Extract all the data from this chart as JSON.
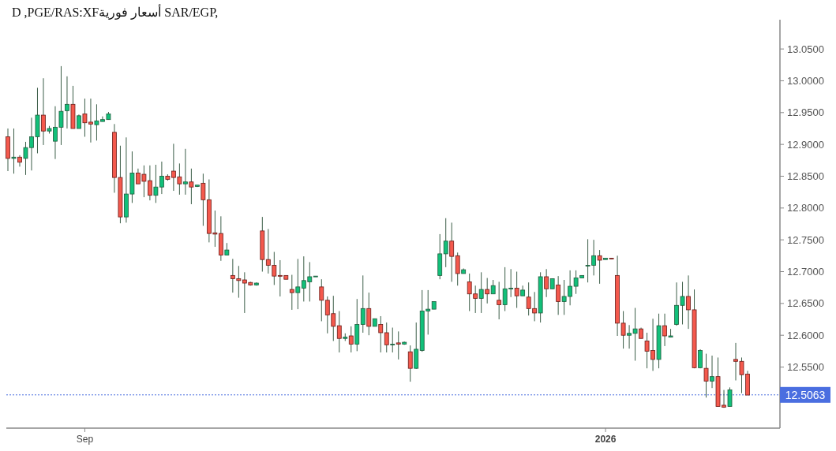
{
  "chart_data": {
    "type": "candlestick",
    "title": "D ,PGE/RAS:XFأسعار فورية SAR/EGP,",
    "categories": [
      null,
      null,
      null,
      null,
      null,
      null,
      null,
      null,
      null,
      null,
      null,
      null,
      null,
      "Sep",
      null,
      null,
      null,
      null,
      null,
      null,
      null,
      null,
      null,
      null,
      null,
      null,
      null,
      null,
      null,
      null,
      null,
      null,
      null,
      null,
      null,
      null,
      null,
      null,
      null,
      null,
      null,
      null,
      null,
      null,
      null,
      null,
      null,
      null,
      null,
      null,
      null,
      null,
      null,
      null,
      null,
      null,
      null,
      null,
      null,
      null,
      null,
      null,
      null,
      null,
      null,
      null,
      null,
      null,
      null,
      null,
      null,
      null,
      null,
      null,
      null,
      null,
      null,
      null,
      null,
      null,
      null,
      null,
      null,
      null,
      null,
      null,
      null,
      null,
      null,
      null,
      null,
      null,
      null,
      null,
      null,
      null,
      null,
      null,
      null,
      null,
      null,
      "2026",
      null,
      null,
      null,
      null,
      null,
      null,
      null,
      null,
      null,
      null,
      null,
      null,
      null,
      null,
      null,
      null,
      null,
      null,
      null,
      null,
      null,
      null,
      null,
      null
    ],
    "ohlc": [
      [
        12.912,
        12.925,
        12.858,
        12.878
      ],
      [
        12.878,
        12.925,
        12.854,
        12.88
      ],
      [
        12.88,
        12.883,
        12.865,
        12.872
      ],
      [
        12.878,
        12.904,
        12.852,
        12.895
      ],
      [
        12.895,
        12.942,
        12.859,
        12.912
      ],
      [
        12.912,
        12.989,
        12.886,
        12.946
      ],
      [
        12.946,
        13.004,
        12.899,
        12.921
      ],
      [
        12.921,
        12.929,
        12.917,
        12.925
      ],
      [
        12.905,
        12.96,
        12.877,
        12.927
      ],
      [
        12.927,
        13.023,
        12.899,
        12.952
      ],
      [
        12.953,
        13.007,
        12.925,
        12.963
      ],
      [
        12.963,
        12.992,
        12.925,
        12.925
      ],
      [
        12.925,
        12.947,
        12.925,
        12.945
      ],
      [
        12.948,
        12.972,
        12.912,
        12.934
      ],
      [
        12.935,
        12.972,
        12.903,
        12.932
      ],
      [
        12.931,
        12.963,
        12.906,
        12.937
      ],
      [
        12.936,
        12.944,
        12.936,
        12.939
      ],
      [
        12.939,
        12.951,
        12.939,
        12.948
      ],
      [
        12.919,
        12.932,
        12.824,
        12.848
      ],
      [
        12.848,
        12.898,
        12.776,
        12.786
      ],
      [
        12.786,
        12.911,
        12.777,
        12.822
      ],
      [
        12.822,
        12.889,
        12.808,
        12.855
      ],
      [
        12.855,
        12.862,
        12.838,
        12.838
      ],
      [
        12.853,
        12.867,
        12.817,
        12.842
      ],
      [
        12.843,
        12.867,
        12.812,
        12.82
      ],
      [
        12.82,
        12.868,
        12.808,
        12.833
      ],
      [
        12.833,
        12.873,
        12.822,
        12.85
      ],
      [
        12.85,
        12.853,
        12.843,
        12.845
      ],
      [
        12.858,
        12.901,
        12.827,
        12.848
      ],
      [
        12.849,
        12.87,
        12.821,
        12.838
      ],
      [
        12.838,
        12.893,
        12.821,
        12.841
      ],
      [
        12.841,
        12.862,
        12.806,
        12.833
      ],
      [
        12.834,
        12.836,
        12.833,
        12.836
      ],
      [
        12.839,
        12.854,
        12.772,
        12.813
      ],
      [
        12.813,
        12.845,
        12.746,
        12.76
      ],
      [
        12.761,
        12.796,
        12.739,
        12.759
      ],
      [
        12.76,
        12.787,
        12.717,
        12.726
      ],
      [
        12.726,
        12.745,
        12.726,
        12.734
      ],
      [
        12.694,
        12.72,
        12.667,
        12.689
      ],
      [
        12.689,
        12.709,
        12.659,
        12.686
      ],
      [
        12.687,
        12.699,
        12.635,
        12.682
      ],
      [
        12.683,
        12.684,
        12.678,
        12.679
      ],
      [
        12.679,
        12.683,
        12.678,
        12.682
      ],
      [
        12.764,
        12.786,
        12.7,
        12.719
      ],
      [
        12.719,
        12.767,
        12.697,
        12.71
      ],
      [
        12.71,
        12.731,
        12.679,
        12.693
      ],
      [
        12.694,
        12.718,
        12.661,
        12.693
      ],
      [
        12.694,
        12.694,
        12.688,
        12.688
      ],
      [
        12.672,
        12.695,
        12.64,
        12.667
      ],
      [
        12.667,
        12.72,
        12.641,
        12.676
      ],
      [
        12.674,
        12.724,
        12.653,
        12.686
      ],
      [
        12.684,
        12.715,
        12.653,
        12.692
      ],
      [
        12.692,
        12.693,
        12.692,
        12.693
      ],
      [
        12.676,
        12.688,
        12.622,
        12.655
      ],
      [
        12.655,
        12.661,
        12.603,
        12.632
      ],
      [
        12.634,
        12.662,
        12.591,
        12.614
      ],
      [
        12.615,
        12.638,
        12.573,
        12.595
      ],
      [
        12.595,
        12.603,
        12.591,
        12.597
      ],
      [
        12.599,
        12.614,
        12.573,
        12.586
      ],
      [
        12.586,
        12.657,
        12.575,
        12.617
      ],
      [
        12.617,
        12.694,
        12.604,
        12.642
      ],
      [
        12.642,
        12.667,
        12.6,
        12.614
      ],
      [
        12.614,
        12.626,
        12.614,
        12.626
      ],
      [
        12.617,
        12.63,
        12.573,
        12.604
      ],
      [
        12.604,
        12.62,
        12.573,
        12.585
      ],
      [
        12.585,
        12.612,
        12.573,
        12.586
      ],
      [
        12.588,
        12.606,
        12.562,
        12.586
      ],
      [
        12.586,
        12.59,
        12.585,
        12.589
      ],
      [
        12.574,
        12.584,
        12.527,
        12.548
      ],
      [
        12.548,
        12.62,
        12.547,
        12.578
      ],
      [
        12.576,
        12.671,
        12.574,
        12.638
      ],
      [
        12.638,
        12.671,
        12.601,
        12.641
      ],
      [
        12.641,
        12.653,
        12.641,
        12.653
      ],
      [
        12.694,
        12.759,
        12.688,
        12.728
      ],
      [
        12.728,
        12.784,
        12.707,
        12.748
      ],
      [
        12.748,
        12.777,
        12.684,
        12.724
      ],
      [
        12.725,
        12.73,
        12.678,
        12.697
      ],
      [
        12.697,
        12.705,
        12.697,
        12.703
      ],
      [
        12.684,
        12.697,
        12.638,
        12.665
      ],
      [
        12.665,
        12.678,
        12.635,
        12.658
      ],
      [
        12.658,
        12.699,
        12.635,
        12.672
      ],
      [
        12.672,
        12.69,
        12.65,
        12.665
      ],
      [
        12.665,
        12.687,
        12.665,
        12.678
      ],
      [
        12.655,
        12.684,
        12.625,
        12.648
      ],
      [
        12.648,
        12.707,
        12.638,
        12.673
      ],
      [
        12.673,
        12.704,
        12.66,
        12.674
      ],
      [
        12.674,
        12.7,
        12.643,
        12.662
      ],
      [
        12.662,
        12.678,
        12.662,
        12.671
      ],
      [
        12.66,
        12.683,
        12.631,
        12.642
      ],
      [
        12.642,
        12.668,
        12.622,
        12.635
      ],
      [
        12.635,
        12.699,
        12.62,
        12.692
      ],
      [
        12.692,
        12.704,
        12.66,
        12.673
      ],
      [
        12.673,
        12.689,
        12.673,
        12.689
      ],
      [
        12.679,
        12.693,
        12.632,
        12.653
      ],
      [
        12.653,
        12.687,
        12.632,
        12.661
      ],
      [
        12.661,
        12.702,
        12.647,
        12.677
      ],
      [
        12.677,
        12.702,
        12.665,
        12.69
      ],
      [
        12.69,
        12.694,
        12.69,
        12.694
      ],
      [
        12.709,
        12.751,
        12.683,
        12.71
      ],
      [
        12.71,
        12.75,
        12.694,
        12.725
      ],
      [
        12.725,
        12.734,
        12.681,
        12.718
      ],
      [
        12.719,
        12.721,
        12.719,
        12.721
      ],
      [
        12.721,
        12.721,
        12.72,
        12.72
      ],
      [
        12.694,
        12.725,
        12.599,
        12.619
      ],
      [
        12.619,
        12.638,
        12.579,
        12.6
      ],
      [
        12.6,
        12.616,
        12.579,
        12.603
      ],
      [
        12.603,
        12.643,
        12.56,
        12.61
      ],
      [
        12.61,
        12.612,
        12.595,
        12.595
      ],
      [
        12.591,
        12.604,
        12.548,
        12.575
      ],
      [
        12.576,
        12.626,
        12.544,
        12.562
      ],
      [
        12.562,
        12.634,
        12.548,
        12.615
      ],
      [
        12.615,
        12.634,
        12.583,
        12.599
      ],
      [
        12.597,
        12.61,
        12.597,
        12.599
      ],
      [
        12.617,
        12.683,
        12.615,
        12.647
      ],
      [
        12.647,
        12.684,
        12.617,
        12.661
      ],
      [
        12.661,
        12.694,
        12.61,
        12.64
      ],
      [
        12.64,
        12.672,
        12.548,
        12.549
      ],
      [
        12.549,
        12.578,
        12.548,
        12.576
      ],
      [
        12.548,
        12.571,
        12.502,
        12.528
      ],
      [
        12.528,
        12.568,
        12.517,
        12.535
      ],
      [
        12.535,
        12.565,
        12.488,
        12.488
      ],
      [
        12.49,
        12.514,
        12.486,
        12.487
      ],
      [
        12.488,
        12.518,
        12.488,
        12.514
      ],
      [
        12.562,
        12.588,
        12.529,
        12.559
      ],
      [
        12.559,
        12.565,
        12.509,
        12.538
      ],
      [
        12.539,
        12.544,
        12.506,
        12.506
      ]
    ],
    "ylim": [
      12.454,
      13.096
    ],
    "yticks": [
      {
        "value": 12.55,
        "label": "12.5500"
      },
      {
        "value": 12.6,
        "label": "12.6000"
      },
      {
        "value": 12.65,
        "label": "12.6500"
      },
      {
        "value": 12.7,
        "label": "12.7000"
      },
      {
        "value": 12.75,
        "label": "12.7500"
      },
      {
        "value": 12.8,
        "label": "12.8000"
      },
      {
        "value": 12.85,
        "label": "12.8500"
      },
      {
        "value": 12.9,
        "label": "12.9000"
      },
      {
        "value": 12.95,
        "label": "12.9500"
      },
      {
        "value": 13.0,
        "label": "13.0000"
      },
      {
        "value": 13.05,
        "label": "13.0500"
      }
    ],
    "ref_lines": [
      {
        "axis": "y",
        "value": 12.5063,
        "label": "12.5063",
        "color": "#4a6ee0",
        "line_style": "dotted"
      }
    ],
    "grid": false
  }
}
